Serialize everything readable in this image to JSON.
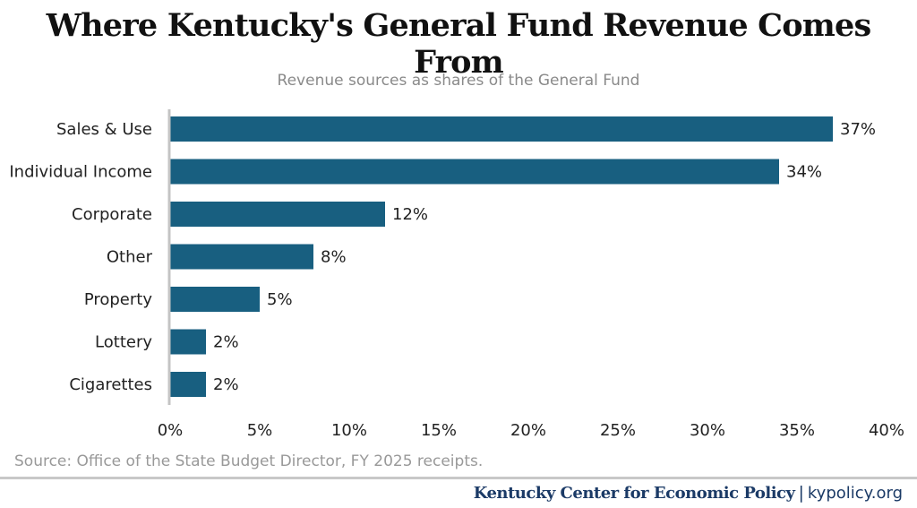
{
  "chart_data": {
    "type": "bar",
    "orientation": "horizontal",
    "title": "Where Kentucky's General Fund Revenue Comes From",
    "subtitle": "Revenue sources as shares of the General Fund",
    "categories": [
      "Sales & Use",
      "Individual Income",
      "Corporate",
      "Other",
      "Property",
      "Lottery",
      "Cigarettes"
    ],
    "values": [
      37,
      34,
      12,
      8,
      5,
      2,
      2
    ],
    "data_labels": [
      "37%",
      "34%",
      "12%",
      "8%",
      "5%",
      "2%",
      "2%"
    ],
    "xlim": [
      0,
      40
    ],
    "xticks": [
      0,
      5,
      10,
      15,
      20,
      25,
      30,
      35,
      40
    ],
    "xtick_labels": [
      "0%",
      "5%",
      "10%",
      "15%",
      "20%",
      "25%",
      "30%",
      "35%",
      "40%"
    ],
    "xlabel": "",
    "ylabel": "",
    "grid": false,
    "bar_color": "#185f80"
  },
  "source": "Source: Office of the State Budget Director, FY 2025 receipts.",
  "footer": {
    "org": "Kentucky Center for Economic Policy",
    "separator": "|",
    "site": "kypolicy.org"
  }
}
